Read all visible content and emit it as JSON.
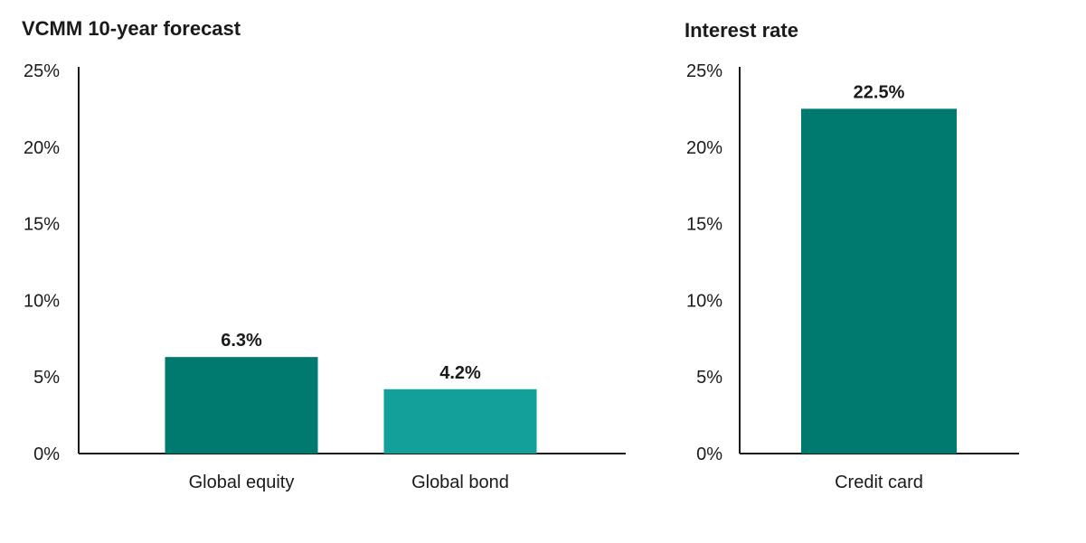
{
  "chart_data": [
    {
      "type": "bar",
      "title": "VCMM 10-year forecast",
      "xlabel": "",
      "ylabel": "",
      "ylim": [
        0,
        25
      ],
      "yticks": [
        0,
        5,
        10,
        15,
        20,
        25
      ],
      "ytick_labels": [
        "0%",
        "5%",
        "10%",
        "15%",
        "20%",
        "25%"
      ],
      "categories": [
        "Global equity",
        "Global bond"
      ],
      "values": [
        6.3,
        4.2
      ],
      "data_labels": [
        "6.3%",
        "4.2%"
      ],
      "colors": [
        "#00796F",
        "#13A09B"
      ],
      "grid": false
    },
    {
      "type": "bar",
      "title": "Interest rate",
      "xlabel": "",
      "ylabel": "",
      "ylim": [
        0,
        25
      ],
      "yticks": [
        0,
        5,
        10,
        15,
        20,
        25
      ],
      "ytick_labels": [
        "0%",
        "5%",
        "10%",
        "15%",
        "20%",
        "25%"
      ],
      "categories": [
        "Credit card"
      ],
      "values": [
        22.5
      ],
      "data_labels": [
        "22.5%"
      ],
      "colors": [
        "#00796F"
      ],
      "grid": false
    }
  ]
}
